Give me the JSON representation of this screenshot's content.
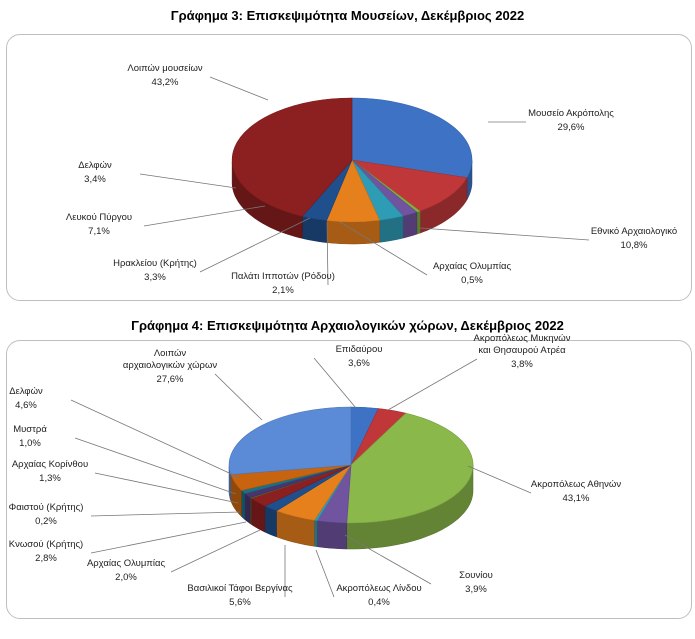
{
  "charts": [
    {
      "title": "Γράφημα 3: Επισκεψιμότητα Μουσείων, Δεκέμβριος 2022",
      "chart_data": {
        "type": "pie",
        "title": "Γράφημα 3: Επισκεψιμότητα Μουσείων, Δεκέμβριος 2022",
        "slices": [
          {
            "label": "Μουσείο Ακρόπολης",
            "value": 29.6,
            "value_label": "29,6%",
            "color": "#3d72c4"
          },
          {
            "label": "Εθνικό Αρχαιολογικό",
            "value": 10.8,
            "value_label": "10,8%",
            "color": "#c0373a"
          },
          {
            "label": "Αρχαίας Ολυμπίας",
            "value": 0.5,
            "value_label": "0,5%",
            "color": "#84b03f"
          },
          {
            "label": "Παλάτι Ιπποτών (Ρόδου)",
            "value": 2.1,
            "value_label": "2,1%",
            "color": "#7154a0"
          },
          {
            "label": "Ηρακλείου (Κρήτης)",
            "value": 3.3,
            "value_label": "3,3%",
            "color": "#2f9cb6"
          },
          {
            "label": "Λευκού Πύργου",
            "value": 7.1,
            "value_label": "7,1%",
            "color": "#e6801d"
          },
          {
            "label": "Δελφών",
            "value": 3.4,
            "value_label": "3,4%",
            "color": "#1f4f8c"
          },
          {
            "label": "Λοιπών μουσείων",
            "value": 43.2,
            "value_label": "43,2%",
            "color": "#8c1f1f"
          }
        ]
      }
    },
    {
      "title": "Γράφημα 4: Επισκεψιμότητα Αρχαιολογικών χώρων, Δεκέμβριος 2022",
      "chart_data": {
        "type": "pie",
        "title": "Γράφημα 4: Επισκεψιμότητα Αρχαιολογικών χώρων, Δεκέμβριος 2022",
        "slices": [
          {
            "label": "Επιδαύρου",
            "value": 3.6,
            "value_label": "3,6%",
            "color": "#3d72c4"
          },
          {
            "label": "Ακροπόλεως Μυκηνών και Θησαυρού Ατρέα",
            "value": 3.8,
            "value_label": "3,8%",
            "color": "#c0373a"
          },
          {
            "label": "Ακροπόλεως Αθηνών",
            "value": 43.1,
            "value_label": "43,1%",
            "color": "#8ab84a"
          },
          {
            "label": "Σουνίου",
            "value": 3.9,
            "value_label": "3,9%",
            "color": "#7154a0"
          },
          {
            "label": "Ακροπόλεως Λίνδου",
            "value": 0.4,
            "value_label": "0,4%",
            "color": "#2f9cb6"
          },
          {
            "label": "Βασιλικοί Τάφοι Βεργίνας",
            "value": 5.6,
            "value_label": "5,6%",
            "color": "#e6801d"
          },
          {
            "label": "Αρχαίας Ολυμπίας",
            "value": 2.0,
            "value_label": "2,0%",
            "color": "#1f4f8c"
          },
          {
            "label": "Κνωσού (Κρήτης)",
            "value": 2.8,
            "value_label": "2,8%",
            "color": "#8c1f1f"
          },
          {
            "label": "Φαιστού (Κρήτης)",
            "value": 0.2,
            "value_label": "0,2%",
            "color": "#5d7d2a"
          },
          {
            "label": "Αρχαίας Κορίνθου",
            "value": 1.3,
            "value_label": "1,3%",
            "color": "#4a3470"
          },
          {
            "label": "Μυστρά",
            "value": 1.0,
            "value_label": "1,0%",
            "color": "#1d6f84"
          },
          {
            "label": "Δελφών",
            "value": 4.6,
            "value_label": "4,6%",
            "color": "#c8640f"
          },
          {
            "label": "Λοιπών αρχαιολογικών χώρων",
            "value": 27.6,
            "value_label": "27,6%",
            "color": "#5b8ad6"
          }
        ]
      }
    }
  ]
}
